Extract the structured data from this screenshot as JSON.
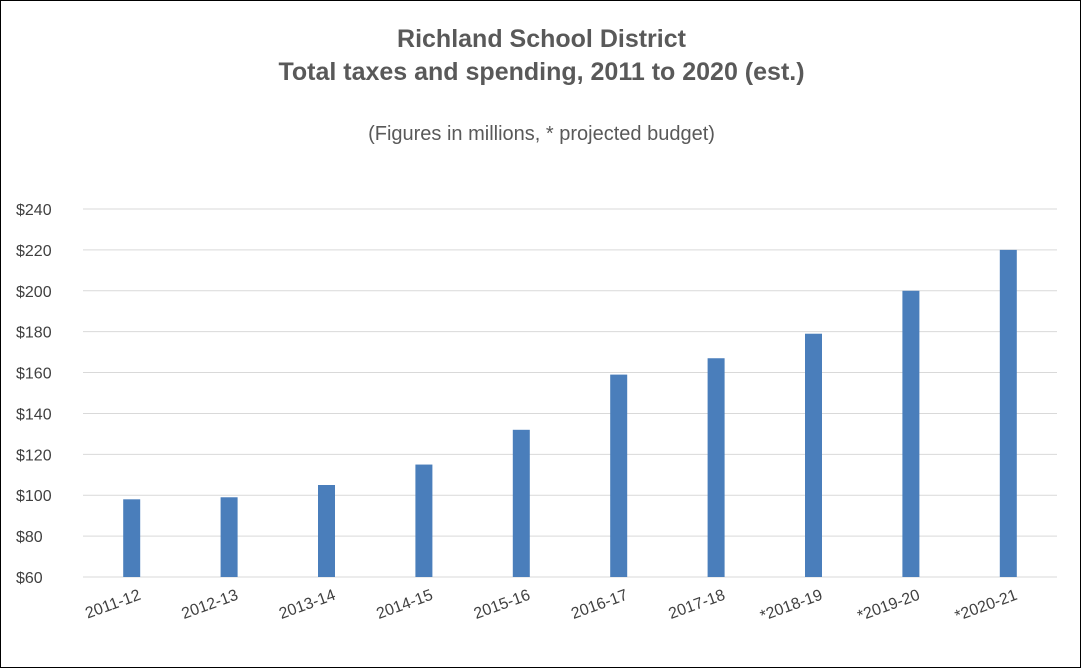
{
  "chart_data": {
    "type": "bar",
    "title": "Richland School District",
    "title_line2": "Total taxes and spending, 2011 to 2020 (est.)",
    "subtitle": "(Figures in millions, * projected budget)",
    "xlabel": "",
    "ylabel": "",
    "categories": [
      "2011-12",
      "2012-13",
      "2013-14",
      "2014-15",
      "2015-16",
      "2016-17",
      "2017-18",
      "*2018-19",
      "*2019-20",
      "*2020-21"
    ],
    "values": [
      98,
      99,
      105,
      115,
      132,
      159,
      167,
      179,
      200,
      220
    ],
    "ylim": [
      60,
      240
    ],
    "yticks": [
      60,
      80,
      100,
      120,
      140,
      160,
      180,
      200,
      220,
      240
    ],
    "ytick_labels": [
      "$60",
      "$80",
      "$100",
      "$120",
      "$140",
      "$160",
      "$180",
      "$200",
      "$220",
      "$240"
    ],
    "grid": true,
    "legend": "none",
    "bar_color": "#4a7ebb",
    "grid_color": "#d9d9d9"
  }
}
